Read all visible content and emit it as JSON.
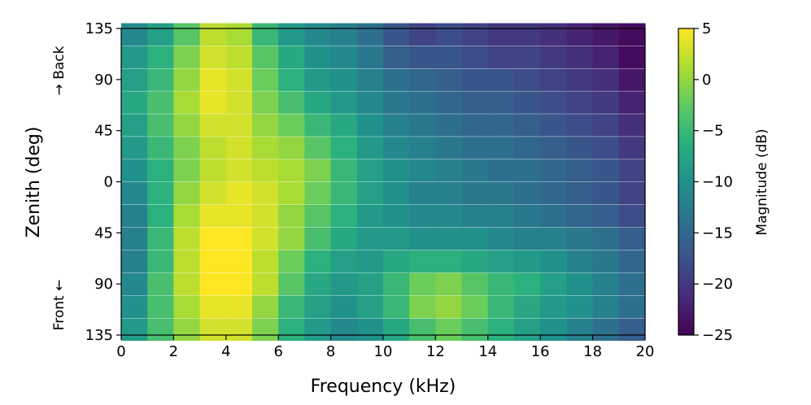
{
  "chart_data": {
    "type": "heatmap",
    "xlabel": "Frequency (kHz)",
    "ylabel": "Zenith (deg)",
    "xlim": [
      0,
      20
    ],
    "ylim": [
      -135,
      135
    ],
    "x_ticks": [
      0,
      2,
      4,
      6,
      8,
      10,
      12,
      14,
      16,
      18,
      20
    ],
    "x_tick_labels": [
      "0",
      "2",
      "4",
      "6",
      "8",
      "10",
      "12",
      "14",
      "16",
      "18",
      "20"
    ],
    "y_ticks": [
      135,
      90,
      45,
      0,
      -45,
      -90,
      -135
    ],
    "y_tick_labels": [
      "135",
      "90",
      "45",
      "0",
      "45",
      "90",
      "135"
    ],
    "side_labels": {
      "back": "→ Back",
      "front": "Front ←"
    },
    "colorbar": {
      "label": "Magnitude (dB)",
      "colormap": "viridis",
      "range": [
        -25,
        5
      ],
      "ticks": [
        5,
        0,
        -5,
        -10,
        -15,
        -20,
        -25
      ],
      "tick_labels": [
        "5",
        "0",
        "−5",
        "−10",
        "−15",
        "−20",
        "−25"
      ]
    },
    "x_bins": [
      0.5,
      1.5,
      2.5,
      3.5,
      4.5,
      5.5,
      6.5,
      7.5,
      8.5,
      9.5,
      10.5,
      11.5,
      12.5,
      13.5,
      14.5,
      15.5,
      16.5,
      17.5,
      18.5,
      19.5
    ],
    "y_bins": [
      130,
      110,
      90,
      70,
      50,
      30,
      10,
      -10,
      -30,
      -50,
      -70,
      -90,
      -110,
      -130
    ],
    "values": [
      [
        -11,
        -8,
        -3,
        2,
        1,
        -5,
        -9,
        -11,
        -12,
        -14,
        -17,
        -19,
        -18,
        -19,
        -20,
        -20,
        -21,
        -22,
        -23,
        -24
      ],
      [
        -9,
        -6,
        -1,
        3,
        2,
        -3,
        -7,
        -10,
        -11,
        -13,
        -16,
        -17,
        -17,
        -18,
        -19,
        -19,
        -20,
        -21,
        -22,
        -24
      ],
      [
        -8,
        -5,
        0,
        4,
        3,
        -2,
        -6,
        -9,
        -10,
        -12,
        -14,
        -15,
        -16,
        -17,
        -17,
        -18,
        -19,
        -20,
        -21,
        -23
      ],
      [
        -7,
        -4,
        1,
        4,
        3,
        -1,
        -4,
        -7,
        -9,
        -11,
        -13,
        -14,
        -15,
        -16,
        -16,
        -17,
        -18,
        -19,
        -20,
        -22
      ],
      [
        -8,
        -4,
        0,
        3,
        3,
        0,
        -2,
        -5,
        -7,
        -10,
        -12,
        -13,
        -14,
        -15,
        -15,
        -16,
        -17,
        -18,
        -19,
        -21
      ],
      [
        -9,
        -5,
        -1,
        2,
        3,
        1,
        0,
        -3,
        -6,
        -9,
        -11,
        -12,
        -13,
        -14,
        -14,
        -15,
        -16,
        -17,
        -18,
        -20
      ],
      [
        -10,
        -6,
        -1,
        2,
        3,
        2,
        1,
        -1,
        -5,
        -8,
        -10,
        -11,
        -12,
        -13,
        -14,
        -14,
        -15,
        -16,
        -17,
        -19
      ],
      [
        -11,
        -6,
        0,
        3,
        4,
        3,
        1,
        -2,
        -5,
        -8,
        -10,
        -12,
        -12,
        -13,
        -13,
        -14,
        -15,
        -16,
        -17,
        -19
      ],
      [
        -12,
        -6,
        1,
        4,
        4,
        3,
        0,
        -3,
        -6,
        -9,
        -10,
        -11,
        -11,
        -12,
        -12,
        -13,
        -14,
        -15,
        -16,
        -18
      ],
      [
        -12,
        -5,
        2,
        5,
        5,
        3,
        0,
        -4,
        -7,
        -9,
        -9,
        -10,
        -10,
        -10,
        -11,
        -12,
        -12,
        -13,
        -14,
        -16
      ],
      [
        -12,
        -5,
        2,
        5,
        5,
        2,
        -2,
        -6,
        -8,
        -9,
        -7,
        -6,
        -6,
        -7,
        -8,
        -9,
        -10,
        -12,
        -13,
        -15
      ],
      [
        -11,
        -4,
        2,
        5,
        5,
        2,
        -3,
        -7,
        -9,
        -8,
        -5,
        -2,
        -1,
        -3,
        -5,
        -6,
        -8,
        -10,
        -12,
        -14
      ],
      [
        -10,
        -4,
        1,
        4,
        4,
        0,
        -5,
        -8,
        -10,
        -8,
        -5,
        -1,
        0,
        -2,
        -5,
        -7,
        -9,
        -10,
        -12,
        -14
      ],
      [
        -9,
        -4,
        0,
        3,
        3,
        -1,
        -6,
        -9,
        -11,
        -10,
        -7,
        -4,
        -2,
        -4,
        -6,
        -8,
        -10,
        -12,
        -14,
        -16
      ]
    ]
  }
}
